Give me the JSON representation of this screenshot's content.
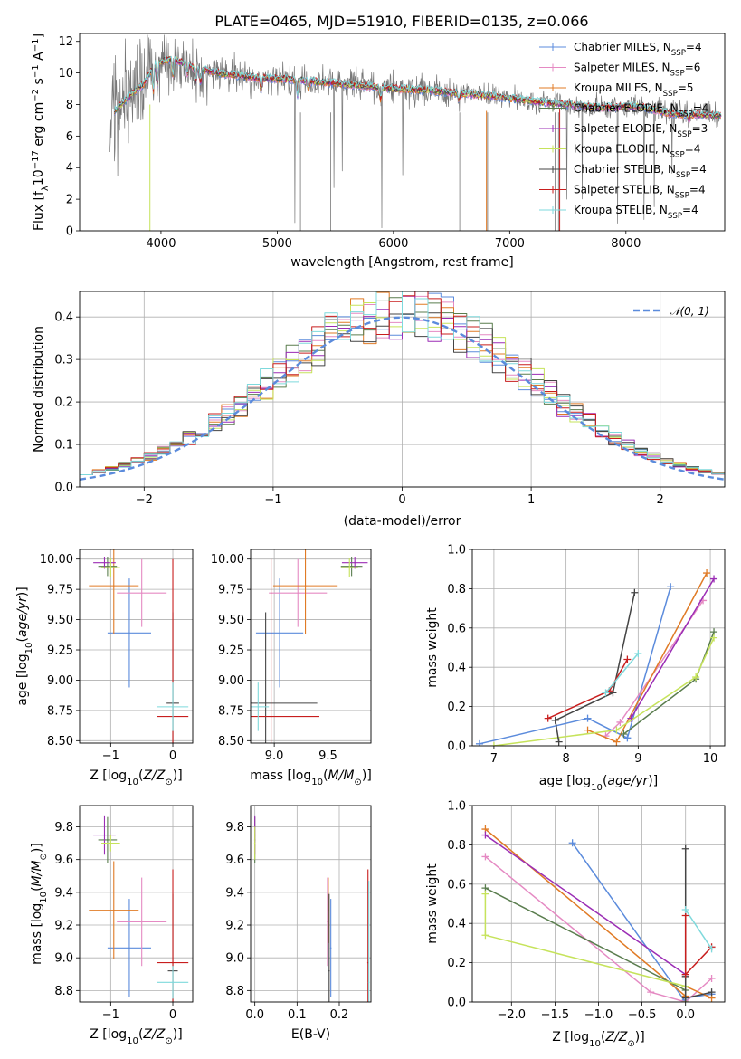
{
  "title": "PLATE=0465, MJD=51910, FIBERID=0135, z=0.066",
  "series": [
    {
      "name": "Chabrier MILES, N$_{SSP}$=4",
      "label": "Chabrier MILES, N",
      "sub": "SSP",
      "suffix": "=4",
      "color": "#5b8bdc"
    },
    {
      "name": "Salpeter MILES, N$_{SSP}$=6",
      "label": "Salpeter MILES, N",
      "sub": "SSP",
      "suffix": "=6",
      "color": "#e58ac3"
    },
    {
      "name": "Kroupa MILES, N$_{SSP}$=5",
      "label": "Kroupa MILES, N",
      "sub": "SSP",
      "suffix": "=5",
      "color": "#e07b26"
    },
    {
      "name": "Chabrier ELODIE, N$_{SSP}$=4",
      "label": "Chabrier ELODIE, N",
      "sub": "SSP",
      "suffix": "=4",
      "color": "#5a7d4e"
    },
    {
      "name": "Salpeter ELODIE, N$_{SSP}$=3",
      "label": "Salpeter ELODIE, N",
      "sub": "SSP",
      "suffix": "=3",
      "color": "#9b2db5"
    },
    {
      "name": "Kroupa ELODIE, N$_{SSP}$=4",
      "label": "Kroupa ELODIE, N",
      "sub": "SSP",
      "suffix": "=4",
      "color": "#c6e35b"
    },
    {
      "name": "Chabrier STELIB, N$_{SSP}$=4",
      "label": "Chabrier STELIB, N",
      "sub": "SSP",
      "suffix": "=4",
      "color": "#444444"
    },
    {
      "name": "Salpeter STELIB, N$_{SSP}$=4",
      "label": "Salpeter STELIB, N",
      "sub": "SSP",
      "suffix": "=4",
      "color": "#c81e1e"
    },
    {
      "name": "Kroupa STELIB, N$_{SSP}$=4",
      "label": "Kroupa STELIB, N",
      "sub": "SSP",
      "suffix": "=4",
      "color": "#7ed9dc"
    }
  ],
  "chart_data": [
    {
      "id": "spectrum",
      "type": "line",
      "title": "PLATE=0465, MJD=51910, FIBERID=0135, z=0.066",
      "xlabel": "wavelength [Angstrom, rest frame]",
      "ylabel": "Flux [f$_\\lambda$10$^{-17}$ erg cm$^{-2}$ s$^{-1}$ A$^{-1}$]",
      "xlim": [
        3300,
        8850
      ],
      "ylim": [
        0,
        12.5
      ],
      "xticks": [
        4000,
        5000,
        6000,
        7000,
        8000
      ],
      "yticks": [
        0,
        2,
        4,
        6,
        8,
        10,
        12
      ],
      "data_color": "#777777",
      "continuum": {
        "x": [
          3560,
          3650,
          3750,
          3850,
          3950,
          4100,
          4300,
          4500,
          4800,
          5100,
          5400,
          5700,
          6000,
          6300,
          6600,
          6900,
          7200,
          7500,
          7800,
          8100,
          8400,
          8800
        ],
        "y": [
          7.4,
          7.9,
          8.7,
          9.3,
          10.6,
          10.9,
          10.3,
          10.0,
          9.7,
          9.6,
          9.4,
          9.2,
          9.0,
          8.9,
          8.7,
          8.5,
          8.2,
          8.0,
          7.8,
          7.9,
          7.4,
          7.3
        ]
      },
      "absorption_lines": [
        {
          "x": 3934,
          "depth": 1.6
        },
        {
          "x": 3969,
          "depth": 1.4
        },
        {
          "x": 4102,
          "depth": 1.0
        },
        {
          "x": 4227,
          "depth": 0.6
        },
        {
          "x": 4300,
          "depth": 1.1
        },
        {
          "x": 4340,
          "depth": 0.9
        },
        {
          "x": 4861,
          "depth": 0.8
        },
        {
          "x": 5175,
          "depth": 1.0
        },
        {
          "x": 5270,
          "depth": 0.5
        },
        {
          "x": 5890,
          "depth": 0.8
        },
        {
          "x": 6563,
          "depth": 0.5
        },
        {
          "x": 8542,
          "depth": 0.4
        }
      ],
      "legend": "upper right"
    },
    {
      "id": "residuals",
      "type": "line",
      "xlabel": "(data-model)/error",
      "ylabel": "Normed distribution",
      "xlim": [
        -2.5,
        2.5
      ],
      "ylim": [
        0,
        0.46
      ],
      "xticks": [
        -2,
        -1,
        0,
        1,
        2
      ],
      "yticks": [
        0.0,
        0.1,
        0.2,
        0.3,
        0.4
      ],
      "reference": {
        "name": "$\\mathcal{N}(0,1)$",
        "label": "𝒩(0, 1)",
        "color": "#5b8bdc"
      },
      "hist_bin_width": 0.1,
      "legend": "upper right"
    },
    {
      "id": "age_vs_Z",
      "type": "scatter",
      "xlabel": "Z [log$_{10}$(Z/Z$_\\odot$)]",
      "ylabel": "age  [log$_{10}$(age/yr)]",
      "xlim": [
        -1.5,
        0.32
      ],
      "ylim": [
        8.48,
        10.08
      ],
      "xticks": [
        -1,
        0
      ],
      "yticks": [
        8.5,
        8.75,
        9.0,
        9.25,
        9.5,
        9.75,
        10.0
      ],
      "points": [
        {
          "s": 0,
          "x": -0.7,
          "y": 9.39,
          "xerr": 0.35,
          "yerr": 0.45
        },
        {
          "s": 1,
          "x": -0.5,
          "y": 9.72,
          "xerr": 0.4,
          "yerr": 0.28
        },
        {
          "s": 2,
          "x": -0.95,
          "y": 9.78,
          "xerr": 0.4,
          "yerr": 0.4
        },
        {
          "s": 3,
          "x": -1.05,
          "y": 9.94,
          "xerr": 0.15,
          "yerr": 0.08
        },
        {
          "s": 4,
          "x": -1.1,
          "y": 9.97,
          "xerr": 0.18,
          "yerr": 0.05
        },
        {
          "s": 5,
          "x": -1.0,
          "y": 9.93,
          "xerr": 0.15,
          "yerr": 0.08
        },
        {
          "s": 6,
          "x": 0.0,
          "y": 8.81,
          "xerr": 0.1,
          "yerr": 0.75
        },
        {
          "s": 7,
          "x": 0.0,
          "y": 8.7,
          "xerr": 0.25,
          "yerr": 1.3
        },
        {
          "s": 8,
          "x": 0.0,
          "y": 8.78,
          "xerr": 0.25,
          "yerr": 0.2
        }
      ]
    },
    {
      "id": "age_vs_mass",
      "type": "scatter",
      "xlabel": "mass [log$_{10}$(M/M$_\\odot$)]",
      "ylabel": "",
      "xlim": [
        8.78,
        9.9
      ],
      "ylim": [
        8.48,
        10.08
      ],
      "xticks": [
        9.0,
        9.5
      ],
      "yticks": [
        8.5,
        8.75,
        9.0,
        9.25,
        9.5,
        9.75,
        10.0
      ],
      "points": [
        {
          "s": 0,
          "x": 9.05,
          "y": 9.39,
          "xerr": 0.22,
          "yerr": 0.45
        },
        {
          "s": 1,
          "x": 9.22,
          "y": 9.72,
          "xerr": 0.27,
          "yerr": 0.28
        },
        {
          "s": 2,
          "x": 9.29,
          "y": 9.78,
          "xerr": 0.3,
          "yerr": 0.4
        },
        {
          "s": 3,
          "x": 9.72,
          "y": 9.94,
          "xerr": 0.1,
          "yerr": 0.08
        },
        {
          "s": 4,
          "x": 9.75,
          "y": 9.97,
          "xerr": 0.12,
          "yerr": 0.05
        },
        {
          "s": 5,
          "x": 9.7,
          "y": 9.93,
          "xerr": 0.08,
          "yerr": 0.08
        },
        {
          "s": 6,
          "x": 8.92,
          "y": 8.81,
          "xerr": 0.48,
          "yerr": 0.75
        },
        {
          "s": 7,
          "x": 8.97,
          "y": 8.7,
          "xerr": 0.45,
          "yerr": 1.3
        },
        {
          "s": 8,
          "x": 8.85,
          "y": 8.78,
          "xerr": 0.1,
          "yerr": 0.2
        }
      ]
    },
    {
      "id": "mass_vs_Z",
      "type": "scatter",
      "xlabel": "Z [log$_{10}$(Z/Z$_\\odot$)]",
      "ylabel": "mass [log$_{10}$(M/M$_\\odot$)]",
      "xlim": [
        -1.5,
        0.32
      ],
      "ylim": [
        8.73,
        9.93
      ],
      "xticks": [
        -1,
        0
      ],
      "yticks": [
        8.8,
        9.0,
        9.2,
        9.4,
        9.6,
        9.8
      ],
      "points": [
        {
          "s": 0,
          "x": -0.7,
          "y": 9.06,
          "xerr": 0.35,
          "yerr": 0.3
        },
        {
          "s": 1,
          "x": -0.5,
          "y": 9.22,
          "xerr": 0.4,
          "yerr": 0.27
        },
        {
          "s": 2,
          "x": -0.95,
          "y": 9.29,
          "xerr": 0.4,
          "yerr": 0.3
        },
        {
          "s": 3,
          "x": -1.05,
          "y": 9.72,
          "xerr": 0.15,
          "yerr": 0.14
        },
        {
          "s": 4,
          "x": -1.1,
          "y": 9.75,
          "xerr": 0.18,
          "yerr": 0.12
        },
        {
          "s": 5,
          "x": -1.0,
          "y": 9.7,
          "xerr": 0.15,
          "yerr": 0.05
        },
        {
          "s": 6,
          "x": 0.0,
          "y": 8.92,
          "xerr": 0.08,
          "yerr": 0.47
        },
        {
          "s": 7,
          "x": 0.0,
          "y": 8.97,
          "xerr": 0.25,
          "yerr": 0.57
        },
        {
          "s": 8,
          "x": 0.0,
          "y": 8.85,
          "xerr": 0.25,
          "yerr": 0.1
        }
      ]
    },
    {
      "id": "mass_vs_EBV",
      "type": "scatter",
      "xlabel": "E(B-V)",
      "ylabel": "",
      "xlim": [
        -0.01,
        0.275
      ],
      "ylim": [
        8.73,
        9.93
      ],
      "xticks": [
        0.0,
        0.1,
        0.2
      ],
      "yticks": [
        8.8,
        9.0,
        9.2,
        9.4,
        9.6,
        9.8
      ],
      "points": [
        {
          "s": 0,
          "x": 0.18,
          "y": 9.06,
          "xerr": 0.0,
          "yerr": 0.3
        },
        {
          "s": 1,
          "x": 0.172,
          "y": 9.22,
          "xerr": 0.0,
          "yerr": 0.27
        },
        {
          "s": 2,
          "x": 0.174,
          "y": 9.29,
          "xerr": 0.0,
          "yerr": 0.2
        },
        {
          "s": 3,
          "x": 0.0,
          "y": 9.72,
          "xerr": 0.0,
          "yerr": 0.14
        },
        {
          "s": 4,
          "x": 0.0,
          "y": 9.75,
          "xerr": 0.0,
          "yerr": 0.12
        },
        {
          "s": 5,
          "x": 0.0,
          "y": 9.7,
          "xerr": 0.0,
          "yerr": 0.1
        },
        {
          "s": 6,
          "x": 0.176,
          "y": 8.92,
          "xerr": 0.0,
          "yerr": 0.47
        },
        {
          "s": 7,
          "x": 0.268,
          "y": 8.97,
          "xerr": 0.0,
          "yerr": 0.57
        },
        {
          "s": 8,
          "x": 0.27,
          "y": 8.85,
          "xerr": 0.0,
          "yerr": 0.62
        }
      ]
    },
    {
      "id": "weight_vs_age",
      "type": "line",
      "xlabel": "age  [log$_{10}$(age/yr)]",
      "ylabel": "mass weight",
      "xlim": [
        6.7,
        10.2
      ],
      "ylim": [
        0,
        1.0
      ],
      "xticks": [
        7,
        8,
        9,
        10
      ],
      "yticks": [
        0.0,
        0.2,
        0.4,
        0.6,
        0.8,
        1.0
      ],
      "series": [
        {
          "s": 0,
          "x": [
            6.8,
            8.3,
            8.85,
            9.45
          ],
          "y": [
            0.01,
            0.14,
            0.04,
            0.81
          ]
        },
        {
          "s": 1,
          "x": [
            8.55,
            8.75,
            9.9
          ],
          "y": [
            0.05,
            0.12,
            0.74
          ]
        },
        {
          "s": 2,
          "x": [
            8.3,
            8.7,
            9.95
          ],
          "y": [
            0.08,
            0.02,
            0.88
          ]
        },
        {
          "s": 3,
          "x": [
            8.8,
            9.8,
            10.05
          ],
          "y": [
            0.06,
            0.34,
            0.58
          ]
        },
        {
          "s": 4,
          "x": [
            8.9,
            10.05
          ],
          "y": [
            0.14,
            0.85
          ]
        },
        {
          "s": 5,
          "x": [
            7.0,
            8.7,
            9.8,
            10.05
          ],
          "y": [
            0.0,
            0.08,
            0.35,
            0.55
          ]
        },
        {
          "s": 6,
          "x": [
            7.9,
            7.85,
            8.65,
            8.95
          ],
          "y": [
            0.02,
            0.13,
            0.27,
            0.78
          ]
        },
        {
          "s": 7,
          "x": [
            7.75,
            8.6,
            8.85
          ],
          "y": [
            0.14,
            0.28,
            0.44
          ]
        },
        {
          "s": 8,
          "x": [
            8.55,
            9.0
          ],
          "y": [
            0.27,
            0.47
          ]
        }
      ]
    },
    {
      "id": "weight_vs_Z",
      "type": "line",
      "xlabel": "Z [log$_{10}$(Z/Z$_\\odot$)]",
      "ylabel": "mass weight",
      "xlim": [
        -2.45,
        0.45
      ],
      "ylim": [
        0,
        1.0
      ],
      "xticks": [
        -2.0,
        -1.5,
        -1.0,
        -0.5,
        0.0
      ],
      "yticks": [
        0.0,
        0.2,
        0.4,
        0.6,
        0.8,
        1.0
      ],
      "series": [
        {
          "s": 0,
          "x": [
            -1.3,
            0.0,
            0.0,
            0.0,
            0.3
          ],
          "y": [
            0.81,
            0.0,
            0.01,
            0.02,
            0.04
          ]
        },
        {
          "s": 1,
          "x": [
            -2.3,
            -0.4,
            0.0,
            0.3
          ],
          "y": [
            0.74,
            0.05,
            0.0,
            0.12
          ]
        },
        {
          "s": 2,
          "x": [
            -2.3,
            0.0,
            0.0,
            0.3
          ],
          "y": [
            0.88,
            0.03,
            0.08,
            0.02
          ]
        },
        {
          "s": 3,
          "x": [
            -2.3,
            0.0,
            0.0
          ],
          "y": [
            0.58,
            0.06,
            0.0
          ]
        },
        {
          "s": 4,
          "x": [
            -2.3,
            0.0
          ],
          "y": [
            0.85,
            0.14
          ]
        },
        {
          "s": 5,
          "x": [
            -2.3,
            -2.3,
            0.0,
            0.0
          ],
          "y": [
            0.55,
            0.34,
            0.08,
            0.0
          ]
        },
        {
          "s": 6,
          "x": [
            0.0,
            0.0,
            0.0,
            0.3
          ],
          "y": [
            0.78,
            0.13,
            0.02,
            0.05
          ]
        },
        {
          "s": 7,
          "x": [
            0.0,
            0.0,
            0.3
          ],
          "y": [
            0.44,
            0.14,
            0.28
          ]
        },
        {
          "s": 8,
          "x": [
            0.0,
            0.3
          ],
          "y": [
            0.47,
            0.27
          ]
        }
      ]
    }
  ]
}
